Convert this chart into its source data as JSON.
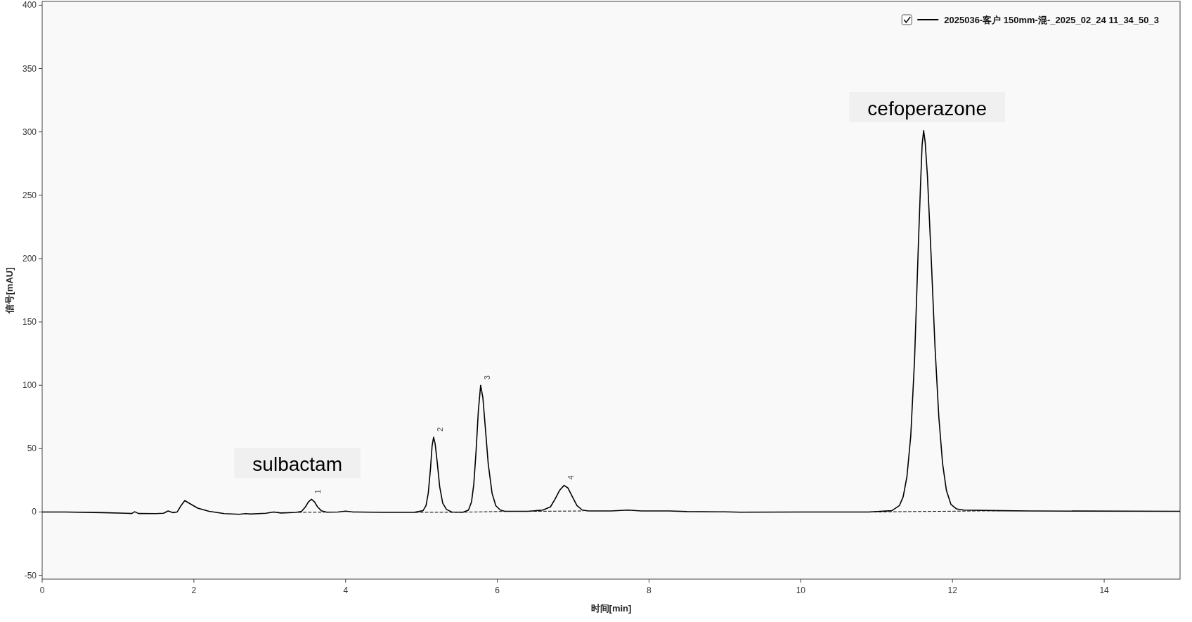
{
  "chart_data": {
    "type": "line",
    "xlabel": "时间[min]",
    "ylabel": "信号[mAU]",
    "xlim": [
      0,
      15
    ],
    "ylim": [
      -53,
      403
    ],
    "xticks": [
      0,
      2,
      4,
      6,
      8,
      10,
      12,
      14
    ],
    "yticks": [
      -50,
      0,
      50,
      100,
      150,
      200,
      250,
      300,
      350,
      400
    ],
    "grid": false,
    "legend": "top right",
    "series": [
      {
        "name": "2025036-客户 150mm-混-_2025_02_24 11_34_50_3",
        "color": "#000000",
        "line_style": "solid",
        "x": [
          0,
          0.3,
          0.8,
          1.1,
          1.18,
          1.22,
          1.27,
          1.5,
          1.6,
          1.66,
          1.72,
          1.78,
          1.83,
          1.88,
          1.95,
          2.05,
          2.2,
          2.4,
          2.6,
          2.68,
          2.75,
          2.95,
          3.05,
          3.15,
          3.35,
          3.42,
          3.47,
          3.51,
          3.55,
          3.59,
          3.63,
          3.68,
          3.75,
          3.9,
          4.0,
          4.1,
          4.5,
          4.9,
          5.02,
          5.06,
          5.09,
          5.12,
          5.14,
          5.16,
          5.18,
          5.21,
          5.24,
          5.28,
          5.33,
          5.4,
          5.55,
          5.62,
          5.66,
          5.69,
          5.72,
          5.75,
          5.78,
          5.81,
          5.84,
          5.88,
          5.93,
          5.98,
          6.04,
          6.1,
          6.4,
          6.6,
          6.7,
          6.76,
          6.82,
          6.88,
          6.93,
          6.99,
          7.05,
          7.12,
          7.2,
          7.5,
          7.72,
          7.9,
          8.27,
          8.5,
          9.0,
          9.2,
          10,
          10.9,
          11.2,
          11.3,
          11.35,
          11.4,
          11.45,
          11.5,
          11.55,
          11.58,
          11.6,
          11.62,
          11.64,
          11.67,
          11.72,
          11.77,
          11.82,
          11.87,
          11.92,
          11.98,
          12.05,
          12.15,
          12.65,
          13,
          15
        ],
        "values": [
          0,
          0,
          -0.5,
          -1,
          -1.2,
          0.2,
          -1.2,
          -1.3,
          -1,
          0.8,
          -0.5,
          0,
          5,
          9,
          6.5,
          3,
          0.5,
          -1.3,
          -1.8,
          -1.3,
          -1.6,
          -1,
          0,
          -0.8,
          -0.3,
          0.5,
          4,
          8,
          10,
          8,
          4,
          1,
          -0.2,
          0,
          0.7,
          0,
          -0.3,
          -0.3,
          1,
          5,
          15,
          35,
          52,
          59,
          54,
          38,
          20,
          7,
          2,
          0,
          -0.2,
          1.5,
          8,
          22,
          48,
          80,
          100,
          90,
          68,
          38,
          15,
          5,
          1.5,
          0.5,
          0.5,
          1.5,
          4,
          10,
          17,
          21,
          19,
          12,
          5,
          1.5,
          0.8,
          0.8,
          1.5,
          0.8,
          0.8,
          0.3,
          0.1,
          -0.2,
          0,
          0,
          1,
          5,
          12,
          28,
          60,
          120,
          210,
          260,
          290,
          301,
          292,
          265,
          200,
          130,
          75,
          38,
          17,
          6,
          2.5,
          1.5,
          1,
          0.8,
          0.5
        ]
      },
      {
        "color": "#000000",
        "line_style": "dashed",
        "x": [
          3.38,
          3.72
        ],
        "values": [
          -0.3,
          -0.2
        ]
      },
      {
        "color": "#000000",
        "line_style": "dashed",
        "x": [
          4.92,
          5.53,
          6.13
        ],
        "values": [
          -0.3,
          -0.2,
          0.5
        ]
      },
      {
        "color": "#000000",
        "line_style": "dashed",
        "x": [
          6.35,
          7.13
        ],
        "values": [
          0.5,
          0.8
        ]
      },
      {
        "color": "#000000",
        "line_style": "dashed",
        "x": [
          10.9,
          12.65
        ],
        "values": [
          0,
          1
        ]
      }
    ],
    "annotations": [
      {
        "text": "1",
        "x": 3.55,
        "y": 10
      },
      {
        "text": "2",
        "x": 5.16,
        "y": 59
      },
      {
        "text": "3",
        "x": 5.78,
        "y": 100
      },
      {
        "text": "4",
        "x": 6.88,
        "y": 21
      },
      {
        "text": "sulbactam",
        "x": 3.55,
        "y": 10
      },
      {
        "text": "cefoperazone",
        "x": 11.62,
        "y": 301
      }
    ]
  }
}
